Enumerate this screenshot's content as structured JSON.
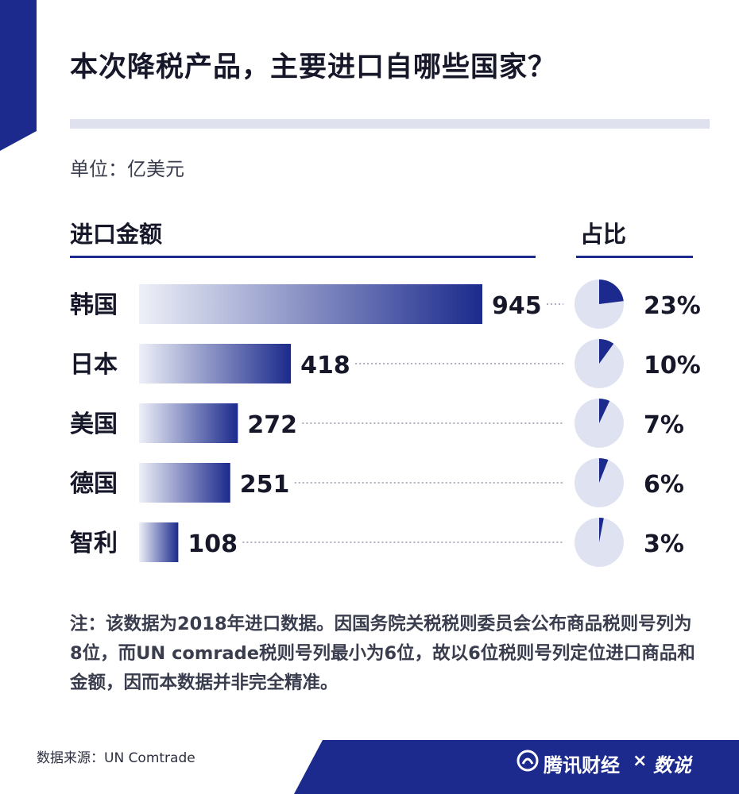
{
  "title": "本次降税产品，主要进口自哪些国家？",
  "unit_label": "单位：亿美元",
  "col_amount_label": "进口金额",
  "col_share_label": "占比",
  "colors": {
    "navy": "#1b2a8c",
    "bar_light": "#e8ebf5",
    "pie_bg": "#dfe3f1",
    "accent_bar": "#dfe2ee"
  },
  "chart_data": {
    "type": "bar",
    "orientation": "horizontal",
    "categories": [
      "韩国",
      "日本",
      "美国",
      "德国",
      "智利"
    ],
    "series": [
      {
        "values": [
          945,
          418,
          272,
          251,
          108
        ]
      }
    ],
    "share_pies": [
      {
        "category": "韩国",
        "value": 23,
        "label": "23%"
      },
      {
        "category": "日本",
        "value": 10,
        "label": "10%"
      },
      {
        "category": "美国",
        "value": 7,
        "label": "7%"
      },
      {
        "category": "德国",
        "value": 6,
        "label": "6%"
      },
      {
        "category": "智利",
        "value": 3,
        "label": "3%"
      }
    ],
    "xlim": [
      0,
      945
    ],
    "grid": false
  },
  "note": "注：该数据为2018年进口数据。因国务院关税税则委员会公布商品税则号列为8位，而UN comrade税则号列最小为6位，故以6位税则号列定位进口商品和金额，因而本数据并非完全精准。",
  "source": "数据来源：UN Comtrade",
  "brand": {
    "name": "腾讯财经",
    "times": "×",
    "partner": "数说"
  }
}
